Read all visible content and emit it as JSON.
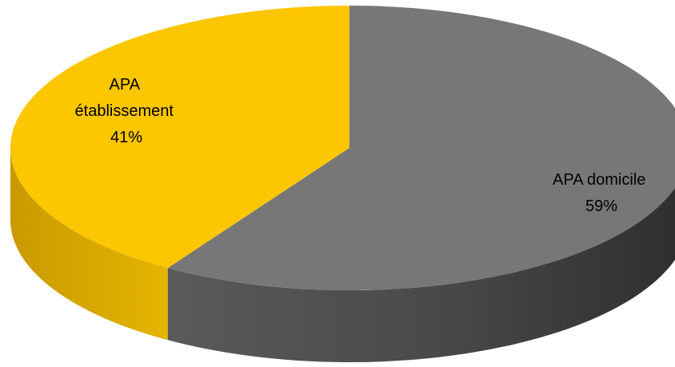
{
  "chart_data": {
    "type": "pie",
    "style": "3d",
    "slices": [
      {
        "label_lines": [
          "APA",
          "établissement",
          "41%"
        ],
        "name": "APA établissement",
        "value": 41,
        "color": "#FCC600",
        "side_color": "#D9A900"
      },
      {
        "label_lines": [
          "APA domicile",
          "59%"
        ],
        "name": "APA domicile",
        "value": 59,
        "color": "#777777",
        "side_color": "#474747"
      }
    ]
  }
}
